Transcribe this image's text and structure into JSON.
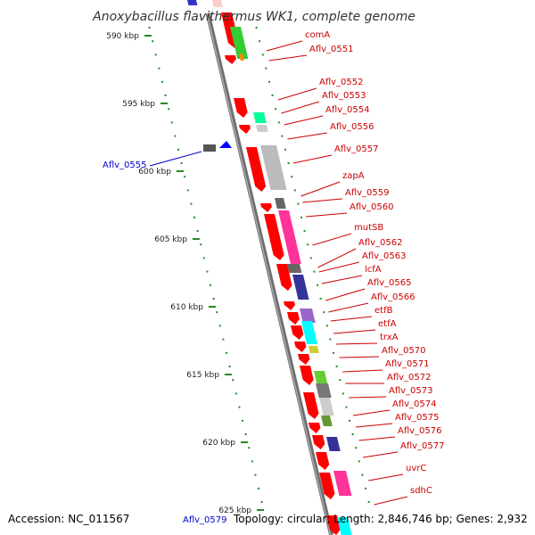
{
  "title": "Anoxybacillus flavithermus WK1, complete genome",
  "footer": {
    "accession": "Accession: NC_011567",
    "topology": "Topology: circular; Length: 2,846,746 bp; Genes: 2,932",
    "bottom_gene": "Aflv_0579"
  },
  "scale": {
    "labels": [
      "590 kbp",
      "595 kbp",
      "600 kbp",
      "605 kbp",
      "610 kbp",
      "615 kbp",
      "620 kbp",
      "625 kbp"
    ]
  },
  "outer_gene": "Aflv_0555",
  "gene_labels": [
    "comA",
    "Aflv_0551",
    "Aflv_0552",
    "Aflv_0553",
    "Aflv_0554",
    "Aflv_0556",
    "Aflv_0557",
    "zapA",
    "Aflv_0559",
    "Aflv_0560",
    "mutSB",
    "Aflv_0562",
    "Aflv_0563",
    "lcfA",
    "Aflv_0565",
    "Aflv_0566",
    "etfB",
    "etfA",
    "trxA",
    "Aflv_0570",
    "Aflv_0571",
    "Aflv_0572",
    "Aflv_0573",
    "Aflv_0574",
    "Aflv_0575",
    "Aflv_0576",
    "Aflv_0577",
    "uvrC",
    "sdhC"
  ],
  "colors": {
    "gene_red": "#ff0000",
    "backbone": "#808080",
    "label_red": "#cc0000",
    "label_blue": "#0000cc",
    "tick_green": "#228b22"
  }
}
